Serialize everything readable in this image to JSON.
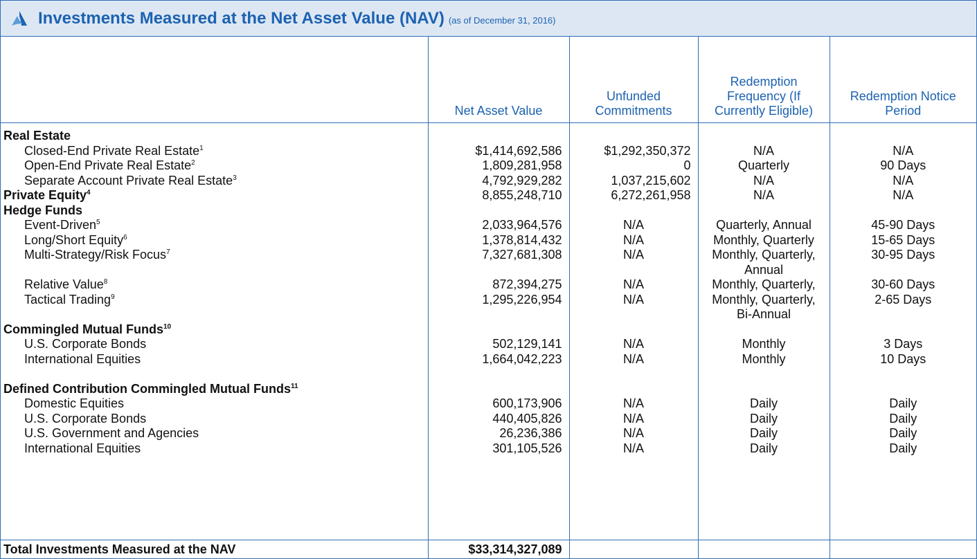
{
  "header": {
    "title": "Investments Measured at the Net Asset Value (NAV)",
    "subtitle": "(as of December 31, 2016)"
  },
  "table": {
    "columns": [
      "Net Asset Value",
      "Unfunded Commitments",
      "Redemption Frequency (If Currently Eligible)",
      "Redemption Notice Period"
    ],
    "rows": [
      {
        "group": true,
        "label": "Real Estate"
      },
      {
        "label": "Closed-End Private Real Estate",
        "note": "1",
        "nav": "$1,414,692,586",
        "unfunded": "$1,292,350,372",
        "frequency": "N/A",
        "notice": "N/A"
      },
      {
        "label": "Open-End Private Real Estate",
        "note": "2",
        "nav": "1,809,281,958",
        "unfunded": "0",
        "frequency": "Quarterly",
        "notice": "90 Days"
      },
      {
        "label": "Separate Account Private Real Estate",
        "note": "3",
        "nav": "4,792,929,282",
        "unfunded": "1,037,215,602",
        "frequency": "N/A",
        "notice": "N/A"
      },
      {
        "group": true,
        "label": "Private Equity",
        "note": "4",
        "nav": "8,855,248,710",
        "unfunded": "6,272,261,958",
        "frequency": "N/A",
        "notice": "N/A"
      },
      {
        "group": true,
        "label": "Hedge Funds"
      },
      {
        "label": "Event-Driven",
        "note": "5",
        "nav": "2,033,964,576",
        "unfunded": "N/A",
        "frequency": "Quarterly, Annual",
        "notice": "45-90 Days"
      },
      {
        "label": "Long/Short Equity",
        "note": "6",
        "nav": "1,378,814,432",
        "unfunded": "N/A",
        "frequency": "Monthly, Quarterly",
        "notice": "15-65 Days"
      },
      {
        "label": "Multi-Strategy/Risk Focus",
        "note": "7",
        "nav": "7,327,681,308",
        "unfunded": "N/A",
        "frequency": "Monthly, Quarterly, Annual",
        "notice": "30-95 Days"
      },
      {
        "label": "Relative Value",
        "note": "8",
        "nav": "872,394,275",
        "unfunded": "N/A",
        "frequency": "Monthly, Quarterly,",
        "notice": "30-60 Days"
      },
      {
        "label": "Tactical Trading",
        "note": "9",
        "nav": "1,295,226,954",
        "unfunded": "N/A",
        "frequency": "Monthly, Quarterly, Bi-Annual",
        "notice": "2-65 Days"
      },
      {
        "group": true,
        "label": "Commingled Mutual Funds",
        "note": "10"
      },
      {
        "label": "U.S. Corporate Bonds",
        "nav": "502,129,141",
        "unfunded": "N/A",
        "frequency": "Monthly",
        "notice": "3 Days"
      },
      {
        "label": "International Equities",
        "nav": "1,664,042,223",
        "unfunded": "N/A",
        "frequency": "Monthly",
        "notice": "10 Days"
      },
      {
        "group": true,
        "label": "Defined Contribution Commingled Mutual Funds",
        "note": "11"
      },
      {
        "label": "Domestic Equities",
        "nav": "600,173,906",
        "unfunded": "N/A",
        "frequency": "Daily",
        "notice": "Daily"
      },
      {
        "label": "U.S. Corporate Bonds",
        "nav": "440,405,826",
        "unfunded": "N/A",
        "frequency": "Daily",
        "notice": "Daily"
      },
      {
        "label": "U.S. Government and Agencies",
        "nav": "26,236,386",
        "unfunded": "N/A",
        "frequency": "Daily",
        "notice": "Daily"
      },
      {
        "label": "International Equities",
        "nav": "301,105,526",
        "unfunded": "N/A",
        "frequency": "Daily",
        "notice": "Daily"
      }
    ],
    "total": {
      "label": "Total Investments Measured at the NAV",
      "nav": "$33,314,327,089"
    }
  }
}
